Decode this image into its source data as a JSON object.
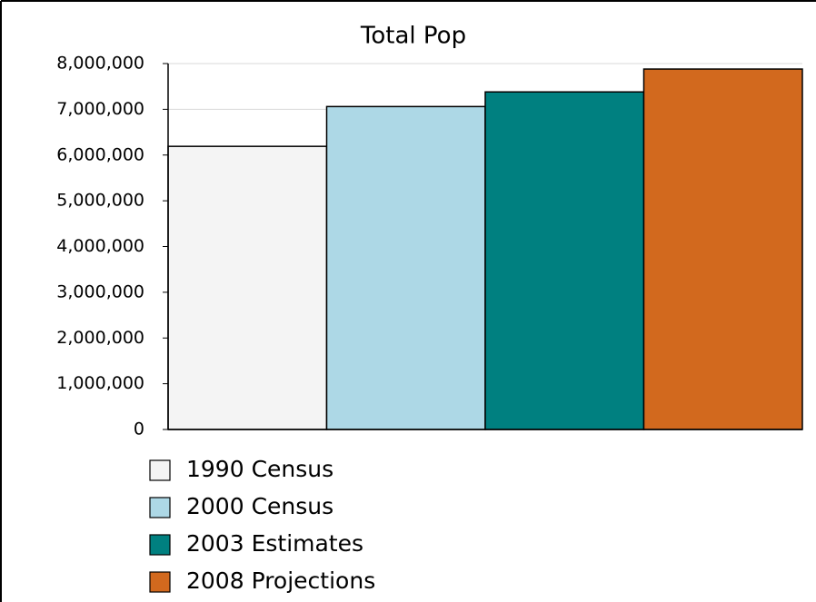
{
  "chart_data": {
    "type": "bar",
    "title": "Total Pop",
    "series": [
      {
        "name": "1990 Census",
        "color": "#f4f4f4",
        "values": [
          6190000
        ]
      },
      {
        "name": "2000 Census",
        "color": "#add8e6",
        "values": [
          7060000
        ]
      },
      {
        "name": "2003 Estimates",
        "color": "#008080",
        "values": [
          7380000
        ]
      },
      {
        "name": "2008 Projections",
        "color": "#d2691e",
        "values": [
          7880000
        ]
      }
    ],
    "ylim": [
      0,
      8000000
    ],
    "yticks": [
      0,
      {
        "value": 1000000,
        "label": "1,000,000"
      },
      {
        "value": 2000000,
        "label": "2,000,000"
      },
      {
        "value": 3000000,
        "label": "3,000,000"
      },
      {
        "value": 4000000,
        "label": "4,000,000"
      },
      {
        "value": 5000000,
        "label": "5,000,000"
      },
      {
        "value": 6000000,
        "label": "6,000,000"
      },
      {
        "value": 7000000,
        "label": "7,000,000"
      },
      {
        "value": 8000000,
        "label": "8,000,000"
      }
    ],
    "grid": true,
    "legend": "bottom"
  }
}
